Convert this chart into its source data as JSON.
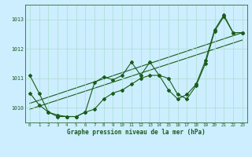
{
  "xlabel": "Graphe pression niveau de la mer (hPa)",
  "background_color": "#cceeff",
  "grid_color": "#aaddcc",
  "line_color": "#1a5c1a",
  "xlim": [
    -0.5,
    23.5
  ],
  "ylim": [
    1009.5,
    1013.5
  ],
  "xticks": [
    0,
    1,
    2,
    3,
    4,
    5,
    6,
    7,
    8,
    9,
    10,
    11,
    12,
    13,
    14,
    15,
    16,
    17,
    18,
    19,
    20,
    21,
    22,
    23
  ],
  "yticks": [
    1010,
    1011,
    1012,
    1013
  ],
  "main_y": [
    1011.1,
    1010.5,
    1009.85,
    1009.7,
    1009.7,
    1009.7,
    1009.85,
    1010.85,
    1011.05,
    1010.95,
    1011.1,
    1011.55,
    1011.1,
    1011.55,
    1011.1,
    1010.6,
    1010.3,
    1010.45,
    1010.8,
    1011.6,
    1012.65,
    1013.15,
    1012.55,
    1012.55
  ],
  "lower_y": [
    1010.5,
    1010.1,
    1009.85,
    1009.75,
    1009.7,
    1009.7,
    1009.85,
    1009.95,
    1010.3,
    1010.5,
    1010.6,
    1010.8,
    1011.0,
    1011.1,
    1011.1,
    1011.0,
    1010.45,
    1010.3,
    1010.75,
    1011.5,
    1012.6,
    1013.1,
    1012.55,
    1012.55
  ],
  "trend1_x": [
    0,
    23
  ],
  "trend1_y": [
    1010.15,
    1012.55
  ],
  "trend2_x": [
    0,
    23
  ],
  "trend2_y": [
    1009.95,
    1012.3
  ]
}
